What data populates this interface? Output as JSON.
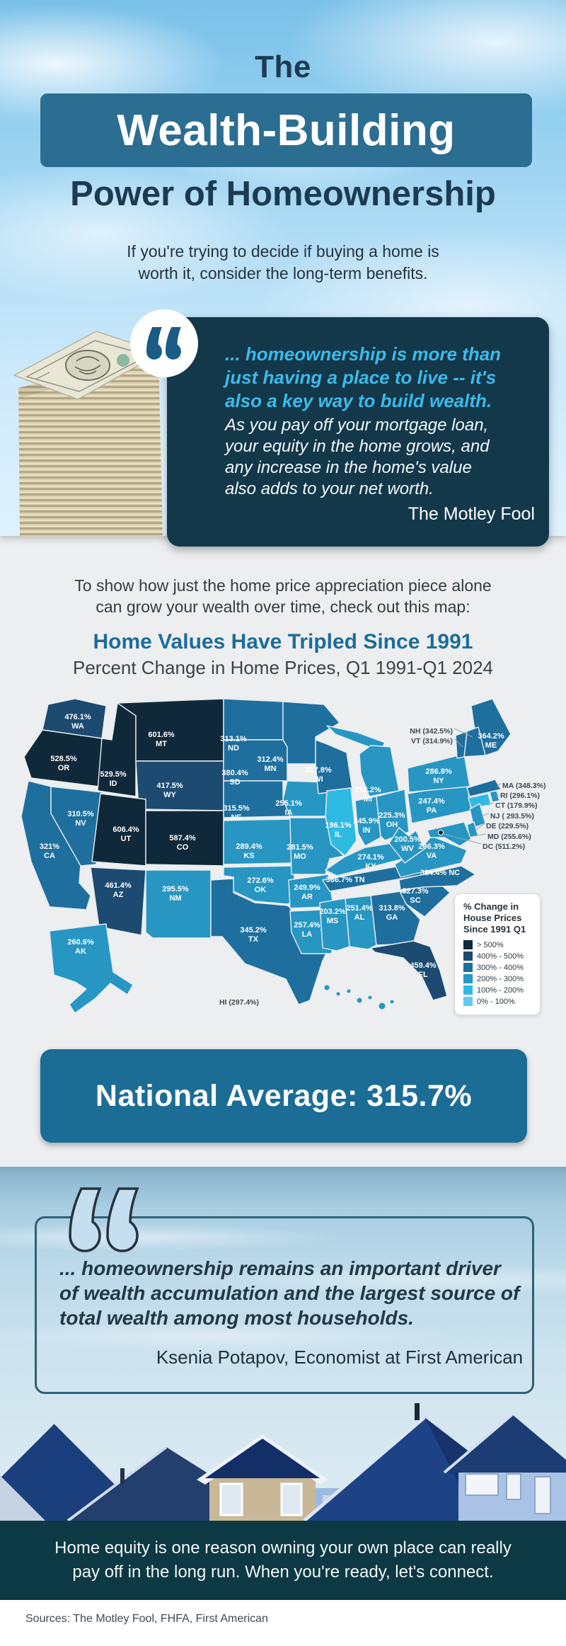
{
  "hero": {
    "title_line1": "The",
    "title_line2": "Wealth-Building",
    "title_line3": "Power of Homeownership",
    "subtitle": "If you're trying to decide if buying a home is\nworth it, consider the long-term benefits.",
    "accent_color": "#2C6E91"
  },
  "quote1": {
    "highlight": "... homeownership is more than\njust having a place to live -- it's\nalso a key way to build wealth.",
    "body": "As you pay off your mortgage loan,\nyour equity in the home grows, and\nany increase in the home's value\nalso adds to your net worth.",
    "attribution": "The Motley Fool",
    "card_color": "#12384A",
    "highlight_color": "#3FB9E8"
  },
  "map_section": {
    "intro": "To show how just the home price appreciation piece alone\ncan grow your wealth over time, check out this map:",
    "title": "Home Values Have Tripled Since 1991",
    "subtitle": "Percent Change in Home Prices, Q1 1991-Q1 2024"
  },
  "chart_data": {
    "type": "heatmap",
    "subtype": "us-choropleth",
    "title": "Home Values Have Tripled Since 1991",
    "subtitle": "Percent Change in Home Prices, Q1 1991-Q1 2024",
    "unit": "% change in home prices, Q1 1991 - Q1 2024",
    "national_average": 315.7,
    "legend": {
      "title": "% Change in\nHouse Prices\nSince 1991 Q1",
      "position": "right",
      "bands": [
        {
          "label": "> 500%",
          "min": 500,
          "color": "#10293A"
        },
        {
          "label": "400% - 500%",
          "min": 400,
          "color": "#1C4A70"
        },
        {
          "label": "300% - 400%",
          "min": 300,
          "color": "#1E6F9E"
        },
        {
          "label": "200% - 300%",
          "min": 200,
          "color": "#2796C3"
        },
        {
          "label": "100% - 200%",
          "min": 100,
          "color": "#2FBAE4"
        },
        {
          "label": "0% - 100%",
          "min": 0,
          "color": "#63CBF0"
        }
      ]
    },
    "states": [
      {
        "abbr": "WA",
        "value": 476.1,
        "display": "476.1%"
      },
      {
        "abbr": "OR",
        "value": 528.5,
        "display": "528.5%"
      },
      {
        "abbr": "CA",
        "value": 321.0,
        "display": "321%"
      },
      {
        "abbr": "NV",
        "value": 310.5,
        "display": "310.5%"
      },
      {
        "abbr": "ID",
        "value": 529.5,
        "display": "529.5%"
      },
      {
        "abbr": "MT",
        "value": 601.6,
        "display": "601.6%"
      },
      {
        "abbr": "WY",
        "value": 417.5,
        "display": "417.5%"
      },
      {
        "abbr": "UT",
        "value": 606.4,
        "display": "606.4%"
      },
      {
        "abbr": "CO",
        "value": 587.4,
        "display": "587.4%"
      },
      {
        "abbr": "AZ",
        "value": 461.4,
        "display": "461.4%"
      },
      {
        "abbr": "NM",
        "value": 295.5,
        "display": "295.5%"
      },
      {
        "abbr": "ND",
        "value": 313.1,
        "display": "313.1%"
      },
      {
        "abbr": "SD",
        "value": 380.4,
        "display": "380.4%"
      },
      {
        "abbr": "NE",
        "value": 315.5,
        "display": "315.5%"
      },
      {
        "abbr": "KS",
        "value": 289.4,
        "display": "289.4%"
      },
      {
        "abbr": "OK",
        "value": 272.6,
        "display": "272.6%"
      },
      {
        "abbr": "TX",
        "value": 345.2,
        "display": "345.2%"
      },
      {
        "abbr": "MN",
        "value": 312.4,
        "display": "312.4%"
      },
      {
        "abbr": "IA",
        "value": 255.1,
        "display": "255.1%"
      },
      {
        "abbr": "MO",
        "value": 281.5,
        "display": "281.5%"
      },
      {
        "abbr": "AR",
        "value": 249.9,
        "display": "249.9%"
      },
      {
        "abbr": "LA",
        "value": 257.4,
        "display": "257.4%"
      },
      {
        "abbr": "WI",
        "value": 327.8,
        "display": "327.8%"
      },
      {
        "abbr": "IL",
        "value": 196.1,
        "display": "196.1%"
      },
      {
        "abbr": "MI",
        "value": 258.2,
        "display": "258.2%"
      },
      {
        "abbr": "IN",
        "value": 245.9,
        "display": "245.9%"
      },
      {
        "abbr": "OH",
        "value": 225.3,
        "display": "225.3%"
      },
      {
        "abbr": "KY",
        "value": 274.1,
        "display": "274.1%"
      },
      {
        "abbr": "TN",
        "value": 366.7,
        "display": "366.7%"
      },
      {
        "abbr": "MS",
        "value": 203.2,
        "display": "203.2%"
      },
      {
        "abbr": "AL",
        "value": 251.4,
        "display": "251.4%"
      },
      {
        "abbr": "GA",
        "value": 313.8,
        "display": "313.8%"
      },
      {
        "abbr": "FL",
        "value": 459.4,
        "display": "459.4%"
      },
      {
        "abbr": "SC",
        "value": 327.3,
        "display": "327.3%"
      },
      {
        "abbr": "NC",
        "value": 324.4,
        "display": "324.4%"
      },
      {
        "abbr": "VA",
        "value": 296.3,
        "display": "296.3%"
      },
      {
        "abbr": "WV",
        "value": 200.5,
        "display": "200.5%"
      },
      {
        "abbr": "PA",
        "value": 247.4,
        "display": "247.4%"
      },
      {
        "abbr": "NY",
        "value": 286.8,
        "display": "286.8%"
      },
      {
        "abbr": "ME",
        "value": 364.2,
        "display": "364.2%"
      },
      {
        "abbr": "NH",
        "value": 342.5,
        "display": "NH (342.5%)",
        "external": true
      },
      {
        "abbr": "VT",
        "value": 314.9,
        "display": "VT (314.9%)",
        "external": true
      },
      {
        "abbr": "MA",
        "value": 348.3,
        "display": "MA (348.3%)",
        "external": true
      },
      {
        "abbr": "RI",
        "value": 296.1,
        "display": "RI (296.1%)",
        "external": true
      },
      {
        "abbr": "CT",
        "value": 179.9,
        "display": "CT (179.9%)",
        "external": true
      },
      {
        "abbr": "NJ",
        "value": 293.5,
        "display": "NJ ( 293.5%)",
        "external": true
      },
      {
        "abbr": "DE",
        "value": 229.5,
        "display": "DE (229.5%)",
        "external": true
      },
      {
        "abbr": "MD",
        "value": 255.6,
        "display": "MD (255.6%)",
        "external": true
      },
      {
        "abbr": "DC",
        "value": 511.2,
        "display": "DC (511.2%)",
        "external": true
      },
      {
        "abbr": "AK",
        "value": 260.6,
        "display": "260.6%"
      },
      {
        "abbr": "HI",
        "value": 297.4,
        "display": "HI (297.4%)",
        "external": true
      }
    ]
  },
  "banner": {
    "text": "National Average: 315.7%",
    "color": "#1C6D96"
  },
  "quote2": {
    "text": "... homeownership remains an important driver\nof wealth accumulation and the largest source of\ntotal wealth among most households.",
    "attribution": "Ksenia Potapov, Economist at First American"
  },
  "footer": {
    "message": "Home equity is one reason owning your own place can really\npay off in the long run. When you're ready, let's connect.",
    "band_color": "#0C3943",
    "sources": "Sources: The Motley Fool, FHFA, First American"
  }
}
